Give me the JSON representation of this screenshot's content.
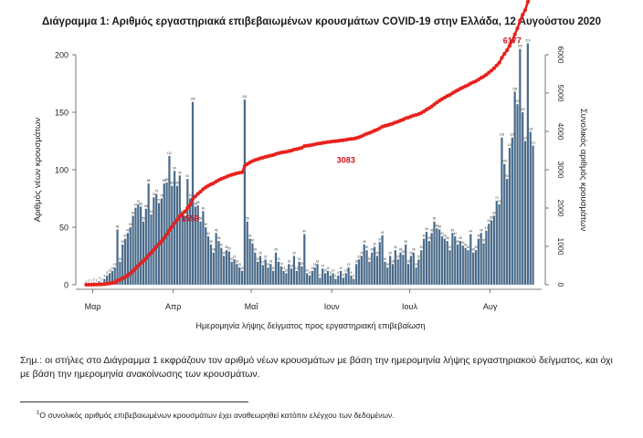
{
  "title": "Διάγραμμα 1: Αριθμός εργαστηριακά επιβεβαιωμένων κρουσμάτων COVID-19 στην Ελλάδα, 12 Αυγούστου 2020",
  "note": "Σημ.: οι στήλες στο Διάγραμμα 1 εκφράζουν τον αριθμό νέων κρουσμάτων με βάση την ημερομηνία λήψης εργαστηριακού δείγματος, και όχι με βάση την ημερομηνία ανακοίνωσης των κρουσμάτων.",
  "footnote_mark": "1",
  "footnote": "Ο συνολικός αριθμός επιβεβαιωμένων κρουσμάτων έχει αναθεωρηθεί κατόπιν ελέγχου των δεδομένων.",
  "colors": {
    "bars": "#4a6b8a",
    "line": "#e8211d",
    "annotation": "#d0121b"
  },
  "chart_data": {
    "type": "bar+line",
    "xlabel": "Ημερομηνία λήψης δείγματος προς εργαστηριακή επιβεβαίωση",
    "ylabel_left": "Αριθμός νέων κρουσμάτων",
    "ylabel_right": "Συνολικός αριθμός κρουσμάτων",
    "ylim_left": [
      0,
      200
    ],
    "ylim_right": [
      0,
      6000
    ],
    "yticks_left": [
      "0",
      "50",
      "100",
      "150",
      "200"
    ],
    "yticks_right": [
      "0",
      "1000",
      "2000",
      "3000",
      "4000",
      "5000",
      "6000"
    ],
    "month_labels": [
      "Μαρ",
      "Απρ",
      "Μαΐ",
      "Ιουν",
      "Ιουλ",
      "Αυγ"
    ],
    "month_start_index": [
      3,
      34,
      64,
      95,
      125,
      156
    ],
    "daily_new_cases": [
      0,
      1,
      1,
      2,
      1,
      3,
      2,
      5,
      8,
      10,
      12,
      15,
      48,
      20,
      35,
      40,
      45,
      50,
      60,
      67,
      70,
      68,
      55,
      66,
      88,
      61,
      76,
      79,
      71,
      75,
      88,
      89,
      112,
      86,
      99,
      86,
      95,
      61,
      60,
      92,
      75,
      159,
      68,
      69,
      55,
      64,
      50,
      42,
      35,
      28,
      45,
      38,
      32,
      25,
      30,
      29,
      20,
      22,
      18,
      15,
      12,
      161,
      55,
      40,
      36,
      28,
      20,
      25,
      17,
      22,
      15,
      18,
      12,
      28,
      20,
      16,
      12,
      10,
      18,
      14,
      25,
      12,
      20,
      16,
      44,
      10,
      8,
      12,
      15,
      18,
      6,
      14,
      10,
      12,
      8,
      10,
      5,
      8,
      12,
      6,
      10,
      15,
      8,
      5,
      18,
      22,
      25,
      35,
      30,
      20,
      28,
      33,
      25,
      37,
      43,
      20,
      15,
      25,
      18,
      30,
      22,
      28,
      26,
      35,
      18,
      25,
      28,
      15,
      22,
      30,
      40,
      46,
      38,
      45,
      55,
      49,
      48,
      42,
      40,
      38,
      30,
      45,
      42,
      35,
      38,
      34,
      32,
      30,
      44,
      28,
      30,
      40,
      45,
      36,
      47,
      53,
      56,
      60,
      73,
      70,
      128,
      105,
      92,
      119,
      128,
      168,
      157,
      205,
      150,
      125,
      210,
      133,
      121
    ],
    "annotations": [
      {
        "label": "1559",
        "index": 40,
        "value": 1559
      },
      {
        "label": "3083",
        "index": 100,
        "value": 3083
      },
      {
        "label": "6177",
        "index": 164,
        "value": 6177
      }
    ]
  }
}
